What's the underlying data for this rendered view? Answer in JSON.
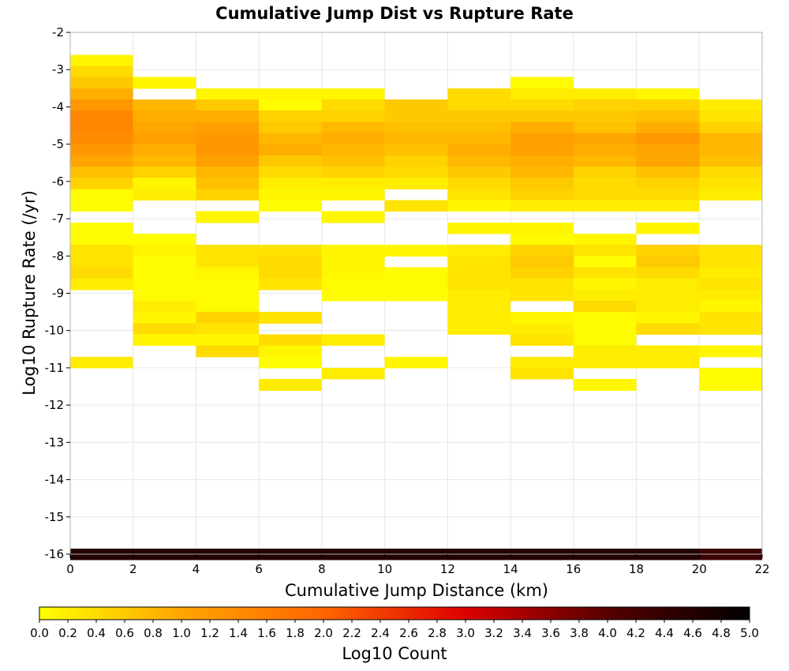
{
  "chart_data": {
    "type": "heatmap",
    "title": "Cumulative Jump Dist vs Rupture Rate",
    "xlabel": "Cumulative Jump Distance (km)",
    "ylabel": "Log10 Rupture Rate (/yr)",
    "xlim": [
      0,
      22
    ],
    "ylim": [
      -16,
      -2
    ],
    "x_ticks": [
      "0",
      "2",
      "4",
      "6",
      "8",
      "10",
      "12",
      "14",
      "16",
      "18",
      "20",
      "22"
    ],
    "y_ticks": [
      "-16",
      "-15",
      "-14",
      "-13",
      "-12",
      "-11",
      "-10",
      "-9",
      "-8",
      "-7",
      "-6",
      "-5",
      "-4",
      "-3",
      "-2"
    ],
    "x_bin_width": 2,
    "y_bin_height": 0.3,
    "grid": true,
    "colorbar": {
      "label": "Log10 Count",
      "range": [
        0,
        5
      ],
      "ticks": [
        "0.0",
        "0.2",
        "0.4",
        "0.6",
        "0.8",
        "1.0",
        "1.2",
        "1.4",
        "1.6",
        "1.8",
        "2.0",
        "2.2",
        "2.4",
        "2.6",
        "2.8",
        "3.0",
        "3.2",
        "3.4",
        "3.6",
        "3.8",
        "4.0",
        "4.2",
        "4.4",
        "4.6",
        "4.8",
        "5.0"
      ],
      "colors": [
        "#ffff00",
        "#ffa500",
        "#ff6600",
        "#dd0000",
        "#550000",
        "#000000"
      ]
    },
    "columns": [
      {
        "x0": 0,
        "cells": [
          [
            -2.75,
            0.1
          ],
          [
            -3.05,
            0.4
          ],
          [
            -3.35,
            0.6
          ],
          [
            -3.65,
            0.9
          ],
          [
            -3.95,
            1.2
          ],
          [
            -4.25,
            1.5
          ],
          [
            -4.55,
            1.5
          ],
          [
            -4.85,
            1.4
          ],
          [
            -5.15,
            1.2
          ],
          [
            -5.45,
            1.0
          ],
          [
            -5.75,
            0.7
          ],
          [
            -6.05,
            0.5
          ],
          [
            -6.35,
            0.05
          ],
          [
            -6.65,
            0.05
          ],
          [
            -7.25,
            0.05
          ],
          [
            -7.55,
            0.05
          ],
          [
            -7.85,
            0.3
          ],
          [
            -8.15,
            0.3
          ],
          [
            -8.45,
            0.4
          ],
          [
            -8.75,
            0.2
          ],
          [
            -10.85,
            0.2
          ],
          [
            -16.0,
            4.6
          ]
        ]
      },
      {
        "x0": 2,
        "cells": [
          [
            -3.35,
            0.1
          ],
          [
            -3.95,
            0.8
          ],
          [
            -4.25,
            0.9
          ],
          [
            -4.55,
            1.0
          ],
          [
            -4.85,
            1.1
          ],
          [
            -5.15,
            0.9
          ],
          [
            -5.45,
            0.8
          ],
          [
            -5.75,
            0.5
          ],
          [
            -6.05,
            0.1
          ],
          [
            -6.35,
            0.2
          ],
          [
            -7.55,
            0.05
          ],
          [
            -7.85,
            0.1
          ],
          [
            -8.15,
            0.05
          ],
          [
            -8.45,
            0.05
          ],
          [
            -8.75,
            0.05
          ],
          [
            -9.05,
            0.05
          ],
          [
            -9.35,
            0.2
          ],
          [
            -9.65,
            0.1
          ],
          [
            -9.95,
            0.4
          ],
          [
            -10.25,
            0.1
          ],
          [
            -16.0,
            4.6
          ]
        ]
      },
      {
        "x0": 4,
        "cells": [
          [
            -3.65,
            0.1
          ],
          [
            -3.95,
            0.6
          ],
          [
            -4.25,
            0.9
          ],
          [
            -4.55,
            1.1
          ],
          [
            -4.85,
            1.2
          ],
          [
            -5.15,
            1.2
          ],
          [
            -5.45,
            1.1
          ],
          [
            -5.75,
            0.8
          ],
          [
            -6.05,
            0.7
          ],
          [
            -6.35,
            0.5
          ],
          [
            -6.95,
            0.1
          ],
          [
            -7.85,
            0.3
          ],
          [
            -8.15,
            0.3
          ],
          [
            -8.45,
            0.1
          ],
          [
            -8.75,
            0.05
          ],
          [
            -9.05,
            0.05
          ],
          [
            -9.35,
            0.05
          ],
          [
            -9.65,
            0.5
          ],
          [
            -9.95,
            0.3
          ],
          [
            -10.25,
            0.1
          ],
          [
            -10.55,
            0.4
          ],
          [
            -16.0,
            4.6
          ]
        ]
      },
      {
        "x0": 6,
        "cells": [
          [
            -3.65,
            0.1
          ],
          [
            -3.95,
            0.05
          ],
          [
            -4.25,
            0.5
          ],
          [
            -4.55,
            0.6
          ],
          [
            -4.85,
            0.8
          ],
          [
            -5.15,
            0.9
          ],
          [
            -5.45,
            0.6
          ],
          [
            -5.75,
            0.4
          ],
          [
            -6.05,
            0.2
          ],
          [
            -6.35,
            0.1
          ],
          [
            -6.65,
            0.05
          ],
          [
            -7.85,
            0.3
          ],
          [
            -8.15,
            0.4
          ],
          [
            -8.45,
            0.4
          ],
          [
            -8.75,
            0.3
          ],
          [
            -9.65,
            0.3
          ],
          [
            -10.25,
            0.4
          ],
          [
            -10.55,
            0.1
          ],
          [
            -10.85,
            0.05
          ],
          [
            -11.45,
            0.2
          ],
          [
            -16.0,
            4.6
          ]
        ]
      },
      {
        "x0": 8,
        "cells": [
          [
            -3.65,
            0.1
          ],
          [
            -3.95,
            0.4
          ],
          [
            -4.25,
            0.5
          ],
          [
            -4.55,
            0.8
          ],
          [
            -4.85,
            0.9
          ],
          [
            -5.15,
            0.8
          ],
          [
            -5.45,
            0.7
          ],
          [
            -5.75,
            0.5
          ],
          [
            -6.05,
            0.2
          ],
          [
            -6.35,
            0.1
          ],
          [
            -6.95,
            0.1
          ],
          [
            -7.85,
            0.1
          ],
          [
            -8.15,
            0.1
          ],
          [
            -8.45,
            0.1
          ],
          [
            -8.75,
            0.05
          ],
          [
            -9.05,
            0.05
          ],
          [
            -10.25,
            0.2
          ],
          [
            -11.15,
            0.2
          ],
          [
            -16.0,
            4.6
          ]
        ]
      },
      {
        "x0": 10,
        "cells": [
          [
            -3.95,
            0.6
          ],
          [
            -4.25,
            0.6
          ],
          [
            -4.55,
            0.7
          ],
          [
            -4.85,
            0.8
          ],
          [
            -5.15,
            0.7
          ],
          [
            -5.45,
            0.5
          ],
          [
            -5.75,
            0.4
          ],
          [
            -6.05,
            0.2
          ],
          [
            -6.65,
            0.3
          ],
          [
            -7.85,
            0.1
          ],
          [
            -8.45,
            0.05
          ],
          [
            -8.75,
            0.05
          ],
          [
            -9.05,
            0.05
          ],
          [
            -10.85,
            0.1
          ],
          [
            -16.0,
            4.6
          ]
        ]
      },
      {
        "x0": 12,
        "cells": [
          [
            -3.65,
            0.4
          ],
          [
            -3.95,
            0.4
          ],
          [
            -4.25,
            0.6
          ],
          [
            -4.55,
            0.7
          ],
          [
            -4.85,
            0.8
          ],
          [
            -5.15,
            0.9
          ],
          [
            -5.45,
            0.8
          ],
          [
            -5.75,
            0.6
          ],
          [
            -6.05,
            0.4
          ],
          [
            -6.35,
            0.3
          ],
          [
            -6.65,
            0.1
          ],
          [
            -7.25,
            0.1
          ],
          [
            -7.85,
            0.2
          ],
          [
            -8.15,
            0.3
          ],
          [
            -8.45,
            0.3
          ],
          [
            -8.75,
            0.3
          ],
          [
            -9.05,
            0.2
          ],
          [
            -9.35,
            0.2
          ],
          [
            -9.65,
            0.2
          ],
          [
            -9.95,
            0.2
          ],
          [
            -16.0,
            4.6
          ]
        ]
      },
      {
        "x0": 14,
        "cells": [
          [
            -3.35,
            0.05
          ],
          [
            -3.65,
            0.2
          ],
          [
            -3.95,
            0.4
          ],
          [
            -4.25,
            0.6
          ],
          [
            -4.55,
            0.9
          ],
          [
            -4.85,
            1.1
          ],
          [
            -5.15,
            1.1
          ],
          [
            -5.45,
            0.9
          ],
          [
            -5.75,
            0.8
          ],
          [
            -6.05,
            0.6
          ],
          [
            -6.35,
            0.5
          ],
          [
            -6.65,
            0.2
          ],
          [
            -7.25,
            0.1
          ],
          [
            -7.55,
            0.05
          ],
          [
            -7.85,
            0.5
          ],
          [
            -8.15,
            0.6
          ],
          [
            -8.45,
            0.5
          ],
          [
            -8.75,
            0.3
          ],
          [
            -9.05,
            0.3
          ],
          [
            -9.65,
            0.1
          ],
          [
            -9.95,
            0.2
          ],
          [
            -10.25,
            0.3
          ],
          [
            -10.85,
            0.2
          ],
          [
            -11.15,
            0.3
          ],
          [
            -16.0,
            4.6
          ]
        ]
      },
      {
        "x0": 16,
        "cells": [
          [
            -3.65,
            0.2
          ],
          [
            -3.95,
            0.5
          ],
          [
            -4.25,
            0.6
          ],
          [
            -4.55,
            0.7
          ],
          [
            -4.85,
            1.0
          ],
          [
            -5.15,
            0.9
          ],
          [
            -5.45,
            0.8
          ],
          [
            -5.75,
            0.5
          ],
          [
            -6.05,
            0.4
          ],
          [
            -6.35,
            0.4
          ],
          [
            -6.65,
            0.2
          ],
          [
            -7.55,
            0.1
          ],
          [
            -7.85,
            0.3
          ],
          [
            -8.15,
            0.05
          ],
          [
            -8.45,
            0.3
          ],
          [
            -8.75,
            0.1
          ],
          [
            -9.05,
            0.2
          ],
          [
            -9.35,
            0.4
          ],
          [
            -9.65,
            0.05
          ],
          [
            -9.95,
            0.05
          ],
          [
            -10.25,
            0.05
          ],
          [
            -10.55,
            0.2
          ],
          [
            -10.85,
            0.2
          ],
          [
            -11.45,
            0.1
          ],
          [
            -16.0,
            4.6
          ]
        ]
      },
      {
        "x0": 18,
        "cells": [
          [
            -3.65,
            0.1
          ],
          [
            -3.95,
            0.5
          ],
          [
            -4.25,
            0.7
          ],
          [
            -4.55,
            0.9
          ],
          [
            -4.85,
            1.2
          ],
          [
            -5.15,
            1.0
          ],
          [
            -5.45,
            1.0
          ],
          [
            -5.75,
            0.7
          ],
          [
            -6.05,
            0.5
          ],
          [
            -6.35,
            0.4
          ],
          [
            -6.65,
            0.2
          ],
          [
            -7.25,
            0.1
          ],
          [
            -7.85,
            0.5
          ],
          [
            -8.15,
            0.6
          ],
          [
            -8.45,
            0.4
          ],
          [
            -8.75,
            0.2
          ],
          [
            -9.05,
            0.2
          ],
          [
            -9.35,
            0.2
          ],
          [
            -9.65,
            0.1
          ],
          [
            -9.95,
            0.4
          ],
          [
            -10.55,
            0.2
          ],
          [
            -10.85,
            0.2
          ],
          [
            -16.0,
            4.6
          ]
        ]
      },
      {
        "x0": 20,
        "cells": [
          [
            -3.95,
            0.2
          ],
          [
            -4.25,
            0.3
          ],
          [
            -4.55,
            0.5
          ],
          [
            -4.85,
            0.8
          ],
          [
            -5.15,
            0.8
          ],
          [
            -5.45,
            0.7
          ],
          [
            -5.75,
            0.4
          ],
          [
            -6.05,
            0.3
          ],
          [
            -6.35,
            0.2
          ],
          [
            -7.85,
            0.3
          ],
          [
            -8.15,
            0.3
          ],
          [
            -8.45,
            0.2
          ],
          [
            -8.75,
            0.3
          ],
          [
            -9.05,
            0.2
          ],
          [
            -9.35,
            0.1
          ],
          [
            -9.65,
            0.3
          ],
          [
            -9.95,
            0.3
          ],
          [
            -10.55,
            0.1
          ],
          [
            -11.15,
            0.05
          ],
          [
            -11.45,
            0.05
          ],
          [
            -16.0,
            4.3
          ]
        ]
      }
    ]
  }
}
